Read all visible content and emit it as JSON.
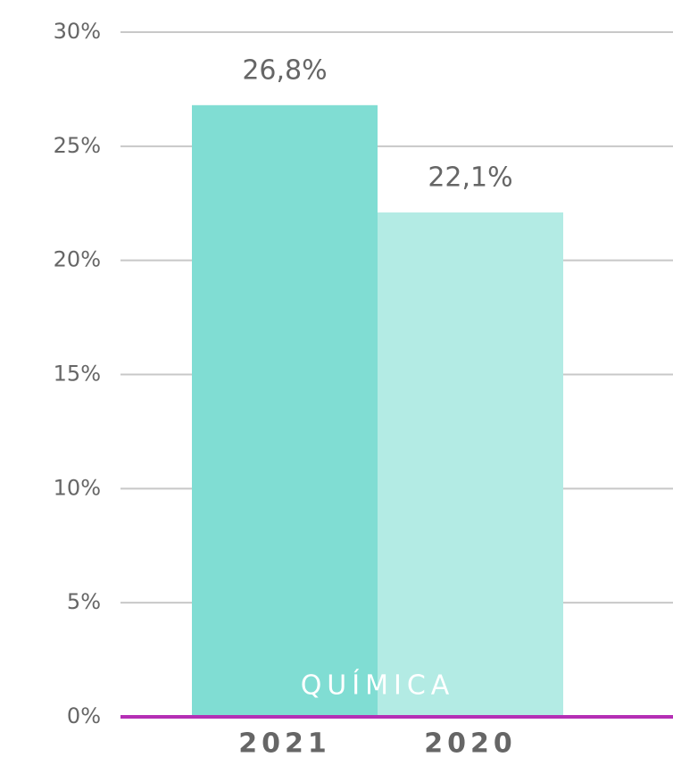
{
  "chart_data": {
    "type": "bar",
    "categories": [
      "QUÍMICA"
    ],
    "series": [
      {
        "name": "2021",
        "color": "#80ddd3",
        "values": [
          26.8
        ],
        "value_labels": [
          "26,8%"
        ]
      },
      {
        "name": "2020",
        "color": "#b3ebe4",
        "values": [
          22.1
        ],
        "value_labels": [
          "22,1%"
        ]
      }
    ],
    "ylim": [
      0,
      30
    ],
    "yticks": [
      {
        "value": 0,
        "label": "0%"
      },
      {
        "value": 5,
        "label": "5%"
      },
      {
        "value": 10,
        "label": "10%"
      },
      {
        "value": 15,
        "label": "15%"
      },
      {
        "value": 20,
        "label": "20%"
      },
      {
        "value": 25,
        "label": "25%"
      },
      {
        "value": 30,
        "label": "30%"
      }
    ],
    "grid": true,
    "axis_color": "#b52fb5"
  }
}
